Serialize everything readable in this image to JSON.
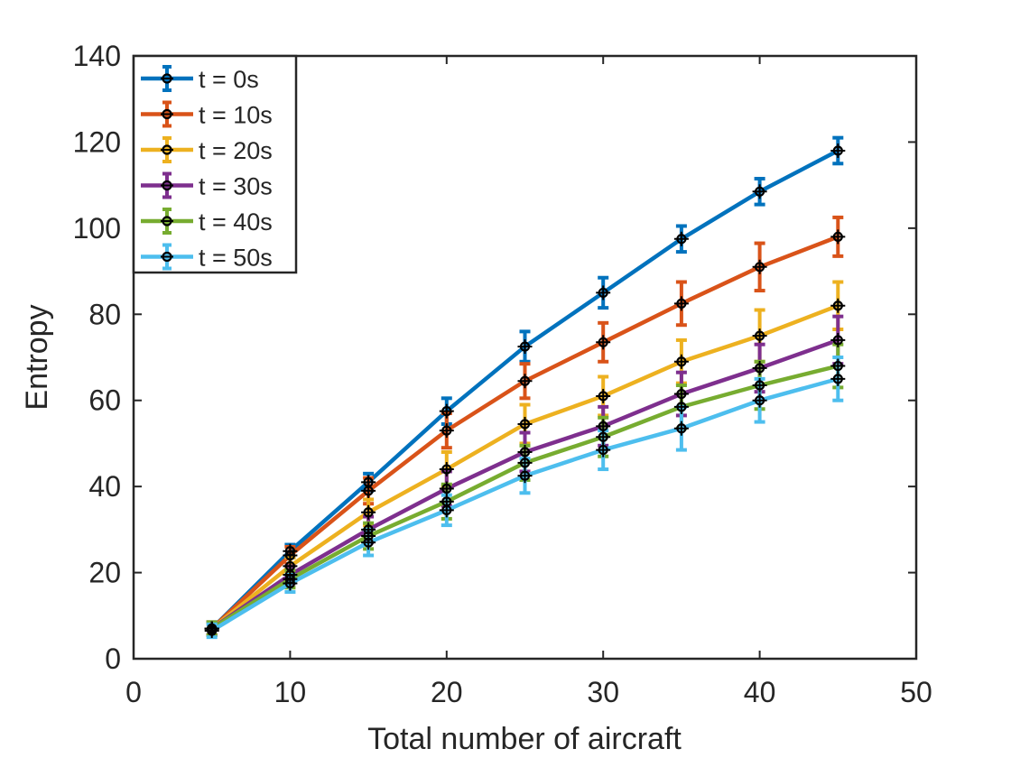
{
  "chart_data": {
    "type": "line",
    "title": "",
    "xlabel": "Total number of aircraft",
    "ylabel": "Entropy",
    "xlim": [
      0,
      50
    ],
    "ylim": [
      0,
      140
    ],
    "xticks": [
      "0",
      "10",
      "20",
      "30",
      "40",
      "50"
    ],
    "yticks": [
      "0",
      "20",
      "40",
      "60",
      "80",
      "100",
      "120",
      "140"
    ],
    "grid": false,
    "legend_position": "top-left",
    "x": [
      5,
      10,
      15,
      20,
      25,
      30,
      35,
      40,
      45
    ],
    "series": [
      {
        "name": "t = 0s",
        "color": "#0072BD",
        "values": [
          7,
          25,
          41,
          57.5,
          72.5,
          85,
          97.5,
          108.5,
          118
        ],
        "errors": [
          1.5,
          1.5,
          2,
          3,
          3.5,
          3.5,
          3,
          3,
          3
        ]
      },
      {
        "name": "t = 10s",
        "color": "#D95319",
        "values": [
          7,
          24,
          39,
          53,
          64.5,
          73.5,
          82.5,
          91,
          98
        ],
        "errors": [
          1.5,
          2,
          3,
          4,
          4,
          4.5,
          5,
          5.5,
          4.5
        ]
      },
      {
        "name": "t = 20s",
        "color": "#EDB120",
        "values": [
          7,
          21.5,
          34,
          44,
          54.5,
          61,
          69,
          75,
          82
        ],
        "errors": [
          1.5,
          2,
          3,
          4,
          4.5,
          4.5,
          5,
          6,
          5.5
        ]
      },
      {
        "name": "t = 30s",
        "color": "#7E2F8E",
        "values": [
          7,
          19.5,
          30,
          39.5,
          48,
          54,
          61.5,
          67.5,
          74
        ],
        "errors": [
          1.5,
          2,
          3,
          4,
          4.5,
          4.5,
          5,
          5.5,
          5.5
        ]
      },
      {
        "name": "t = 40s",
        "color": "#77AC30",
        "values": [
          7,
          18.5,
          28.5,
          36.5,
          45.5,
          51.5,
          58.5,
          63.5,
          68
        ],
        "errors": [
          1.5,
          2,
          3,
          4,
          4,
          4.5,
          5,
          5.5,
          5
        ]
      },
      {
        "name": "t = 50s",
        "color": "#4DBEEE",
        "values": [
          6.5,
          17.5,
          27,
          34.5,
          42.5,
          48.5,
          53.5,
          60,
          65
        ],
        "errors": [
          1.5,
          2,
          3,
          3.5,
          4,
          4.5,
          5,
          5,
          5
        ]
      }
    ]
  }
}
